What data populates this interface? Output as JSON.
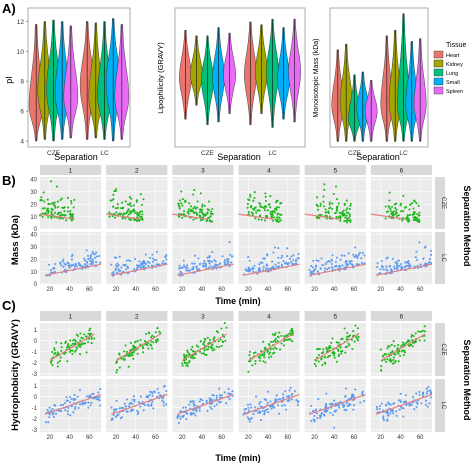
{
  "panels": {
    "a": "A)",
    "b": "B)",
    "c": "C)"
  },
  "colors": {
    "Heart": "#e8766d",
    "Kidney": "#a3a500",
    "Lung": "#00bf7d",
    "Small": "#00b0f6",
    "Spleen": "#e76bf3",
    "cze": "#1db81d",
    "lc": "#5b9bf0",
    "trend": "#e58080",
    "panel_bg": "#ebebeb",
    "strip_bg": "#d9d9d9"
  },
  "chart_data": [
    {
      "type": "violin",
      "panel": "A",
      "xlabel": "Separation",
      "ylabel": "pI",
      "categories": [
        "CZE",
        "LC"
      ],
      "y_ticks": [
        "4",
        "6",
        "8",
        "10",
        "12"
      ],
      "ylim": [
        3.6,
        12.9
      ],
      "series": [
        {
          "name": "Heart",
          "values": [
            {
              "x": "CZE",
              "median": 6.3,
              "min": 4.0,
              "max": 11.8
            },
            {
              "x": "LC",
              "median": 7.7,
              "min": 4.1,
              "max": 12.0
            }
          ]
        },
        {
          "name": "Kidney",
          "values": [
            {
              "x": "CZE",
              "median": 7.3,
              "min": 4.1,
              "max": 12.0
            },
            {
              "x": "LC",
              "median": 6.9,
              "min": 4.2,
              "max": 11.9
            }
          ]
        },
        {
          "name": "Lung",
          "values": [
            {
              "x": "CZE",
              "median": 7.4,
              "min": 4.0,
              "max": 12.1
            },
            {
              "x": "LC",
              "median": 7.0,
              "min": 4.1,
              "max": 12.0
            }
          ]
        },
        {
          "name": "Small",
          "values": [
            {
              "x": "CZE",
              "median": 7.2,
              "min": 4.1,
              "max": 12.0
            },
            {
              "x": "LC",
              "median": 7.9,
              "min": 4.0,
              "max": 12.2
            }
          ]
        },
        {
          "name": "Spleen",
          "values": [
            {
              "x": "CZE",
              "median": 6.9,
              "min": 4.2,
              "max": 11.7
            },
            {
              "x": "LC",
              "median": 6.9,
              "min": 4.1,
              "max": 11.8
            }
          ]
        }
      ]
    },
    {
      "type": "violin",
      "panel": "A",
      "xlabel": "Separation",
      "ylabel": "Lipophilicity (GRAVY)",
      "categories": [
        "CZE",
        "LC"
      ],
      "y_ticks": [],
      "ylim": [
        -3,
        2
      ],
      "series": [
        {
          "name": "Heart",
          "values": [
            {
              "x": "CZE",
              "median": -0.5,
              "min": -2.0,
              "max": 1.2
            },
            {
              "x": "LC",
              "median": -0.4,
              "min": -2.2,
              "max": 1.5
            }
          ]
        },
        {
          "name": "Kidney",
          "values": [
            {
              "x": "CZE",
              "median": -0.4,
              "min": -1.5,
              "max": 1.0
            },
            {
              "x": "LC",
              "median": -0.3,
              "min": -1.8,
              "max": 1.4
            }
          ]
        },
        {
          "name": "Lung",
          "values": [
            {
              "x": "CZE",
              "median": -0.6,
              "min": -2.2,
              "max": 1.0
            },
            {
              "x": "LC",
              "median": -0.3,
              "min": -2.3,
              "max": 1.6
            }
          ]
        },
        {
          "name": "Small",
          "values": [
            {
              "x": "CZE",
              "median": -0.5,
              "min": -2.1,
              "max": 1.3
            },
            {
              "x": "LC",
              "median": -0.6,
              "min": -2.0,
              "max": 1.3
            }
          ]
        },
        {
          "name": "Spleen",
          "values": [
            {
              "x": "CZE",
              "median": -0.4,
              "min": -1.8,
              "max": 1.1
            },
            {
              "x": "LC",
              "median": -0.3,
              "min": -2.1,
              "max": 1.6
            }
          ]
        }
      ]
    },
    {
      "type": "violin",
      "panel": "A",
      "xlabel": "Separation",
      "ylabel": "Monoisotopic Mass (kDa)",
      "categories": [
        "CZE",
        "LC"
      ],
      "y_ticks": [],
      "ylim": [
        0,
        50
      ],
      "legend_title": "Tissue",
      "legend": [
        "Heart",
        "Kidney",
        "Lung",
        "Small",
        "Spleen"
      ],
      "series": [
        {
          "name": "Heart",
          "values": [
            {
              "x": "CZE",
              "median": 15,
              "min": 2,
              "max": 35
            },
            {
              "x": "LC",
              "median": 15,
              "min": 2,
              "max": 40
            }
          ]
        },
        {
          "name": "Kidney",
          "values": [
            {
              "x": "CZE",
              "median": 16,
              "min": 2,
              "max": 37
            },
            {
              "x": "LC",
              "median": 16,
              "min": 2,
              "max": 42
            }
          ]
        },
        {
          "name": "Lung",
          "values": [
            {
              "x": "CZE",
              "median": 10,
              "min": 2,
              "max": 26
            },
            {
              "x": "LC",
              "median": 15,
              "min": 2,
              "max": 48
            }
          ]
        },
        {
          "name": "Small",
          "values": [
            {
              "x": "CZE",
              "median": 14,
              "min": 2,
              "max": 27
            },
            {
              "x": "LC",
              "median": 15,
              "min": 2,
              "max": 38
            }
          ]
        },
        {
          "name": "Spleen",
          "values": [
            {
              "x": "CZE",
              "median": 13,
              "min": 2,
              "max": 24
            },
            {
              "x": "LC",
              "median": 15,
              "min": 2,
              "max": 39
            }
          ]
        }
      ]
    },
    {
      "type": "scatter",
      "panel": "B",
      "ylabel": "Mass (kDa)",
      "xlabel": "Time (min)",
      "facet_cols": [
        "1",
        "2",
        "3",
        "4",
        "5",
        "6"
      ],
      "facet_rows": [
        "CZE",
        "LC"
      ],
      "facet_row_title": "Separation Method",
      "x_ticks": [
        "20",
        "40",
        "60"
      ],
      "xlim": [
        10,
        72
      ],
      "y_ticks": [
        "0",
        "10",
        "20",
        "30",
        "40"
      ],
      "ylim": [
        0,
        42
      ],
      "series": [
        {
          "name": "CZE",
          "x_range": [
            10,
            45
          ],
          "y_center": 10,
          "y_spread": 8,
          "trend": [
            [
              10,
              12
            ],
            [
              45,
              8
            ]
          ]
        },
        {
          "name": "LC",
          "x_range": [
            15,
            72
          ],
          "y_center": 12,
          "y_spread": 6,
          "trend": [
            [
              15,
              7
            ],
            [
              72,
              16
            ]
          ]
        }
      ]
    },
    {
      "type": "scatter",
      "panel": "C",
      "ylabel": "Hydrophobicity (GRAVY)",
      "xlabel": "Time (min)",
      "facet_cols": [
        "1",
        "2",
        "3",
        "4",
        "5",
        "6"
      ],
      "facet_rows": [
        "CZE",
        "LC"
      ],
      "facet_row_title": "Separation Method",
      "x_ticks": [
        "20",
        "40",
        "60"
      ],
      "xlim": [
        10,
        72
      ],
      "y_ticks": [
        "-3",
        "-2",
        "-1",
        "0",
        "1"
      ],
      "ylim": [
        -3.2,
        1.6
      ],
      "series": [
        {
          "name": "CZE",
          "x_range": [
            20,
            65
          ],
          "trend": [
            [
              20,
              -1.8
            ],
            [
              65,
              0.6
            ]
          ]
        },
        {
          "name": "LC",
          "x_range": [
            15,
            72
          ],
          "trend": [
            [
              15,
              -1.6
            ],
            [
              72,
              0.2
            ]
          ]
        }
      ]
    }
  ]
}
